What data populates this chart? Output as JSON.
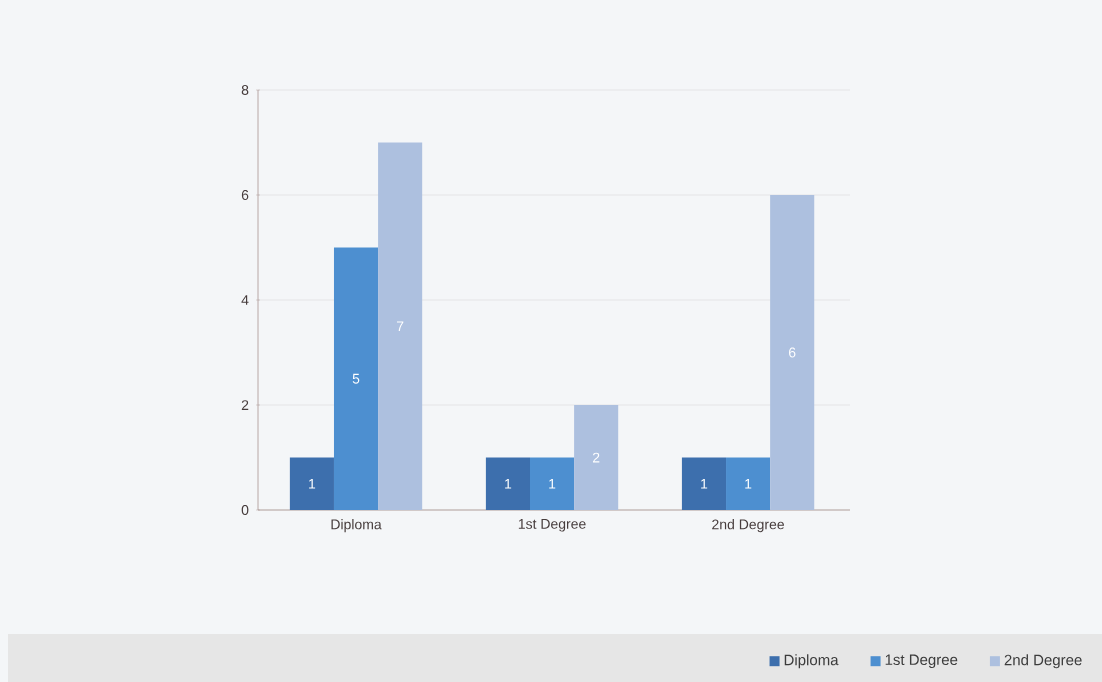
{
  "chart_data": {
    "type": "bar",
    "categories": [
      "Diploma",
      "1st Degree",
      "2nd Degree"
    ],
    "series": [
      {
        "name": "Diploma",
        "color": "#3d6fad",
        "values": [
          1,
          1,
          1
        ]
      },
      {
        "name": "1st Degree",
        "color": "#4d8fd0",
        "values": [
          5,
          1,
          1
        ]
      },
      {
        "name": "2nd Degree",
        "color": "#adc0df",
        "values": [
          7,
          2,
          6
        ]
      }
    ],
    "ylim": [
      0,
      8
    ],
    "yticks": [
      0,
      2,
      4,
      6,
      8
    ],
    "grid": "y",
    "legend": "bottom right",
    "data_labels": true
  }
}
